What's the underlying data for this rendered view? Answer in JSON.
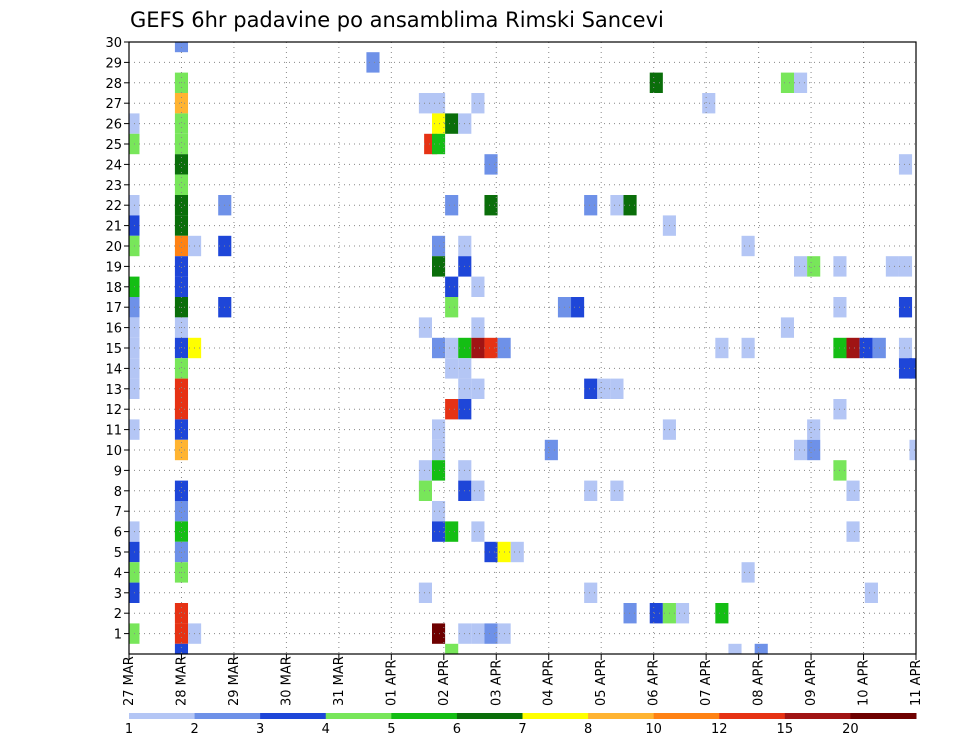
{
  "chart_data": {
    "type": "heatmap",
    "title": "GEFS 6hr padavine po ansamblima Rimski Sancevi",
    "xlabel": "",
    "ylabel": "",
    "x_ticks": [
      "27 MAR",
      "28 MAR",
      "29 MAR",
      "30 MAR",
      "31 MAR",
      "01 APR",
      "02 APR",
      "03 APR",
      "04 APR",
      "05 APR",
      "06 APR",
      "07 APR",
      "08 APR",
      "09 APR",
      "10 APR",
      "11 APR"
    ],
    "x_range": [
      0,
      60
    ],
    "x_step_hours": 6,
    "y_ticks": [
      1,
      2,
      3,
      4,
      5,
      6,
      7,
      8,
      9,
      10,
      11,
      12,
      13,
      14,
      15,
      16,
      17,
      18,
      19,
      20,
      21,
      22,
      23,
      24,
      25,
      26,
      27,
      28,
      29,
      30
    ],
    "y_range": [
      0,
      30
    ],
    "grid": true,
    "colorbar": {
      "labels": [
        "1",
        "2",
        "3",
        "4",
        "5",
        "6",
        "7",
        "8",
        "10",
        "12",
        "15",
        "20"
      ],
      "colors": [
        "#b4c6f5",
        "#6e91e8",
        "#1e46d8",
        "#78e65a",
        "#14be14",
        "#0a6e0a",
        "#ffff00",
        "#ffb432",
        "#ff8214",
        "#e63214",
        "#a01414",
        "#6e0000"
      ]
    },
    "cells": [
      [
        0.3,
        26,
        0
      ],
      [
        0.3,
        25,
        3
      ],
      [
        0.3,
        22,
        0
      ],
      [
        0.3,
        21,
        2
      ],
      [
        0.3,
        20,
        3
      ],
      [
        0.3,
        18,
        4
      ],
      [
        0.3,
        17,
        1
      ],
      [
        0.3,
        16,
        0
      ],
      [
        0.3,
        15,
        0
      ],
      [
        0.3,
        14,
        0
      ],
      [
        0.3,
        13,
        0
      ],
      [
        0.3,
        11,
        0
      ],
      [
        0.3,
        6,
        0
      ],
      [
        0.3,
        5,
        2
      ],
      [
        0.3,
        4,
        3
      ],
      [
        0.3,
        3,
        2
      ],
      [
        0.3,
        1,
        3
      ],
      [
        4,
        30,
        1
      ],
      [
        4,
        28,
        3
      ],
      [
        4,
        27,
        7
      ],
      [
        4,
        26,
        3
      ],
      [
        4,
        25,
        3
      ],
      [
        4,
        24,
        5
      ],
      [
        4,
        23,
        3
      ],
      [
        4,
        22,
        5
      ],
      [
        4,
        21,
        5
      ],
      [
        4,
        20,
        8
      ],
      [
        4,
        19,
        2
      ],
      [
        4,
        18,
        2
      ],
      [
        4,
        17,
        5
      ],
      [
        4,
        16,
        0
      ],
      [
        4,
        15,
        2
      ],
      [
        4,
        14,
        3
      ],
      [
        4,
        13,
        9
      ],
      [
        4,
        12,
        9
      ],
      [
        4,
        11,
        2
      ],
      [
        4,
        10,
        7
      ],
      [
        4,
        8,
        2
      ],
      [
        4,
        7,
        1
      ],
      [
        4,
        6,
        4
      ],
      [
        4,
        5,
        1
      ],
      [
        4,
        4,
        3
      ],
      [
        4,
        2,
        9
      ],
      [
        4,
        1,
        9
      ],
      [
        4,
        0,
        2
      ],
      [
        5,
        20,
        0
      ],
      [
        5,
        15,
        6
      ],
      [
        5,
        1,
        0
      ],
      [
        7.3,
        22,
        1
      ],
      [
        7.3,
        20,
        2
      ],
      [
        7.3,
        17,
        2
      ],
      [
        18.6,
        29,
        1
      ],
      [
        22.6,
        27,
        0
      ],
      [
        22.6,
        16,
        0
      ],
      [
        22.6,
        9,
        0
      ],
      [
        22.6,
        8,
        3
      ],
      [
        22.6,
        3,
        0
      ],
      [
        23,
        25,
        9
      ],
      [
        23.6,
        27,
        0
      ],
      [
        23.6,
        26,
        6
      ],
      [
        23.6,
        25,
        4
      ],
      [
        23.6,
        20,
        1
      ],
      [
        23.6,
        19,
        5
      ],
      [
        23.6,
        15,
        1
      ],
      [
        23.6,
        11,
        0
      ],
      [
        23.6,
        10,
        0
      ],
      [
        23.6,
        9,
        4
      ],
      [
        23.6,
        7,
        0
      ],
      [
        23.6,
        6,
        2
      ],
      [
        23.6,
        1,
        11
      ],
      [
        24.6,
        26,
        5
      ],
      [
        24.6,
        22,
        1
      ],
      [
        24.6,
        18,
        2
      ],
      [
        24.6,
        17,
        3
      ],
      [
        24.6,
        15,
        0
      ],
      [
        24.6,
        14,
        0
      ],
      [
        24.6,
        12,
        9
      ],
      [
        24.6,
        6,
        4
      ],
      [
        24.6,
        0,
        3
      ],
      [
        25.6,
        26,
        0
      ],
      [
        25.6,
        20,
        0
      ],
      [
        25.6,
        19,
        2
      ],
      [
        25.6,
        15,
        4
      ],
      [
        25.6,
        14,
        0
      ],
      [
        25.6,
        13,
        0
      ],
      [
        25.6,
        12,
        2
      ],
      [
        25.6,
        9,
        0
      ],
      [
        25.6,
        8,
        2
      ],
      [
        25.6,
        1,
        0
      ],
      [
        26.6,
        27,
        0
      ],
      [
        26.6,
        18,
        0
      ],
      [
        26.6,
        16,
        0
      ],
      [
        26.6,
        15,
        10
      ],
      [
        26.6,
        13,
        0
      ],
      [
        26.6,
        8,
        0
      ],
      [
        26.6,
        6,
        0
      ],
      [
        26.6,
        1,
        0
      ],
      [
        27.6,
        24,
        1
      ],
      [
        27.6,
        22,
        5
      ],
      [
        27.6,
        15,
        9
      ],
      [
        27.6,
        5,
        2
      ],
      [
        27.6,
        1,
        1
      ],
      [
        28.6,
        15,
        1
      ],
      [
        28.6,
        5,
        6
      ],
      [
        28.6,
        1,
        0
      ],
      [
        29.6,
        5,
        0
      ],
      [
        32.2,
        10,
        1
      ],
      [
        33.2,
        17,
        1
      ],
      [
        34.2,
        17,
        2
      ],
      [
        35.2,
        22,
        1
      ],
      [
        35.2,
        13,
        2
      ],
      [
        35.2,
        8,
        0
      ],
      [
        35.2,
        3,
        0
      ],
      [
        36.2,
        13,
        0
      ],
      [
        37.2,
        22,
        0
      ],
      [
        37.2,
        13,
        0
      ],
      [
        37.2,
        8,
        0
      ],
      [
        38.2,
        22,
        5
      ],
      [
        38.2,
        2,
        1
      ],
      [
        40.2,
        28,
        5
      ],
      [
        40.2,
        2,
        2
      ],
      [
        41.2,
        21,
        0
      ],
      [
        41.2,
        11,
        0
      ],
      [
        41.2,
        2,
        3
      ],
      [
        42.2,
        2,
        0
      ],
      [
        44.2,
        27,
        0
      ],
      [
        45.2,
        15,
        0
      ],
      [
        45.2,
        2,
        4
      ],
      [
        46.2,
        0,
        0
      ],
      [
        47.2,
        20,
        0
      ],
      [
        47.2,
        15,
        0
      ],
      [
        47.2,
        4,
        0
      ],
      [
        48.2,
        0,
        1
      ],
      [
        50.2,
        28,
        3
      ],
      [
        50.2,
        16,
        0
      ],
      [
        51.2,
        28,
        0
      ],
      [
        51.2,
        19,
        0
      ],
      [
        51.2,
        10,
        0
      ],
      [
        52.2,
        19,
        3
      ],
      [
        52.2,
        11,
        0
      ],
      [
        52.2,
        10,
        1
      ],
      [
        54.2,
        19,
        0
      ],
      [
        54.2,
        17,
        0
      ],
      [
        54.2,
        15,
        4
      ],
      [
        54.2,
        12,
        0
      ],
      [
        54.2,
        9,
        3
      ],
      [
        55.2,
        15,
        10
      ],
      [
        55.2,
        8,
        0
      ],
      [
        55.2,
        6,
        0
      ],
      [
        56.2,
        15,
        2
      ],
      [
        56.6,
        3,
        0
      ],
      [
        57.2,
        15,
        1
      ],
      [
        58.2,
        19,
        0
      ],
      [
        59.2,
        24,
        0
      ],
      [
        59.2,
        19,
        0
      ],
      [
        59.2,
        17,
        2
      ],
      [
        59.2,
        15,
        0
      ],
      [
        59.2,
        14,
        2
      ],
      [
        60,
        14,
        2
      ],
      [
        60,
        10,
        0
      ]
    ]
  }
}
